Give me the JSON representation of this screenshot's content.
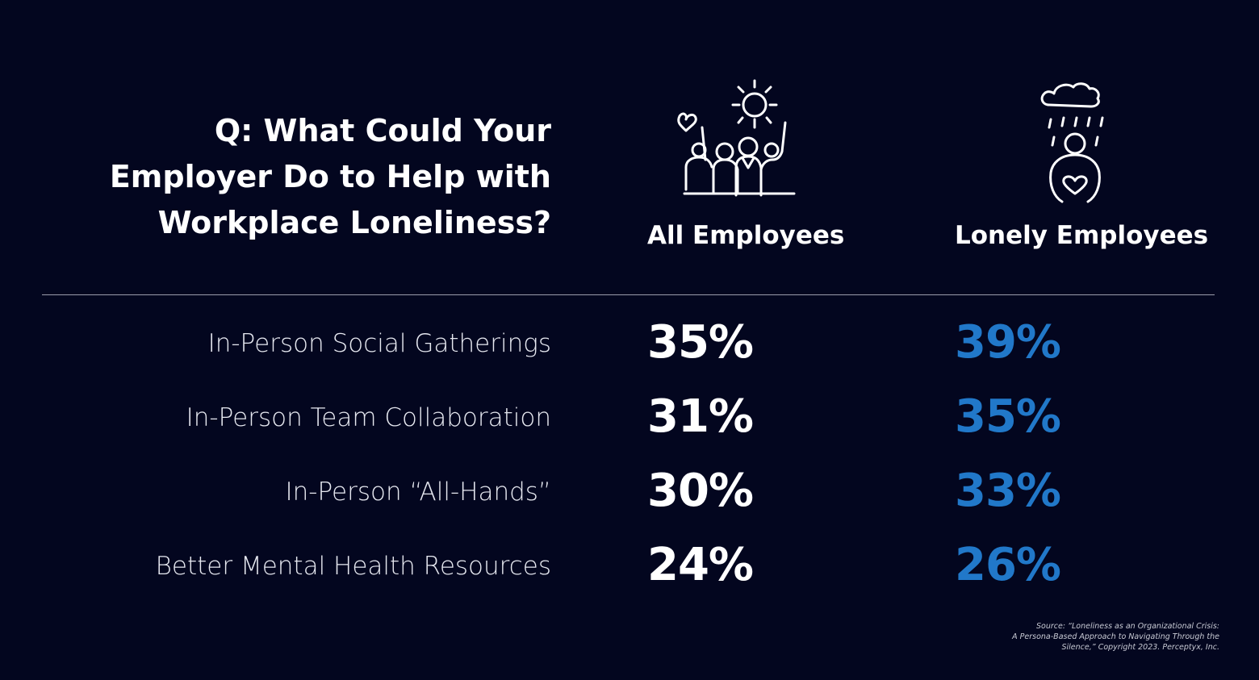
{
  "title": {
    "lines": [
      "Q: What Could Your",
      "Employer Do to Help with",
      "Workplace Loneliness?"
    ]
  },
  "table": {
    "columns": [
      "All Employees",
      "Lonely Employees"
    ],
    "rows": [
      {
        "label": "In-Person Social Gatherings",
        "values": [
          "35%",
          "39%"
        ]
      },
      {
        "label": "In-Person Team Collaboration",
        "values": [
          "31%",
          "35%"
        ]
      },
      {
        "label": "In-Person “All-Hands”",
        "values": [
          "30%",
          "33%"
        ]
      },
      {
        "label": "Better Mental Health Resources",
        "values": [
          "24%",
          "26%"
        ]
      }
    ]
  },
  "source": {
    "lines": [
      "Source: “Loneliness as an Organizational Crisis:",
      "A Persona-Based Approach to Navigating Through the",
      "Silence,” Copyright 2023. Perceptyx, Inc."
    ]
  }
}
